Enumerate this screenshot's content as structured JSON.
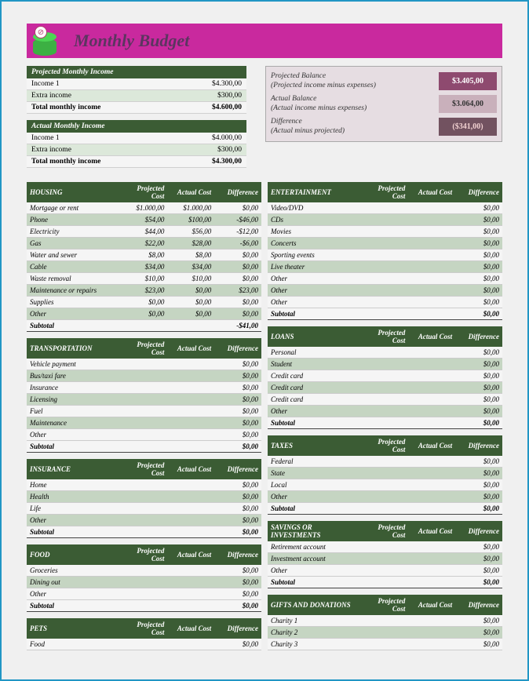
{
  "title": "Monthly Budget",
  "colors": {
    "headerBg": "#c9299e",
    "sectionBg": "#3b5c34",
    "altRow": "#c5d5c2",
    "pageBg": "#f0f0f0",
    "frame": "#2196c4"
  },
  "columnHeaders": {
    "projected": "Projected Cost",
    "actual": "Actual Cost",
    "difference": "Difference"
  },
  "projectedIncome": {
    "header": "Projected Monthly Income",
    "rows": [
      {
        "label": "Income 1",
        "value": "$4.300,00"
      },
      {
        "label": "Extra income",
        "value": "$300,00"
      }
    ],
    "total": {
      "label": "Total monthly income",
      "value": "$4.600,00"
    }
  },
  "actualIncome": {
    "header": "Actual Monthly Income",
    "rows": [
      {
        "label": "Income 1",
        "value": "$4.000,00"
      },
      {
        "label": "Extra income",
        "value": "$300,00"
      }
    ],
    "total": {
      "label": "Total monthly income",
      "value": "$4.300,00"
    }
  },
  "balances": [
    {
      "label": "Projected Balance",
      "sub": "(Projected income minus expenses)",
      "value": "$3.405,00",
      "cls": "bv1"
    },
    {
      "label": "Actual Balance",
      "sub": "(Actual income minus expenses)",
      "value": "$3.064,00",
      "cls": "bv2"
    },
    {
      "label": "Difference",
      "sub": "(Actual minus projected)",
      "value": "($341,00)",
      "cls": "bv3"
    }
  ],
  "leftCategories": [
    {
      "name": "HOUSING",
      "rows": [
        {
          "label": "Mortgage or rent",
          "p": "$1.000,00",
          "a": "$1.000,00",
          "d": "$0,00"
        },
        {
          "label": "Phone",
          "p": "$54,00",
          "a": "$100,00",
          "d": "-$46,00"
        },
        {
          "label": "Electricity",
          "p": "$44,00",
          "a": "$56,00",
          "d": "-$12,00"
        },
        {
          "label": "Gas",
          "p": "$22,00",
          "a": "$28,00",
          "d": "-$6,00"
        },
        {
          "label": "Water and sewer",
          "p": "$8,00",
          "a": "$8,00",
          "d": "$0,00"
        },
        {
          "label": "Cable",
          "p": "$34,00",
          "a": "$34,00",
          "d": "$0,00"
        },
        {
          "label": "Waste removal",
          "p": "$10,00",
          "a": "$10,00",
          "d": "$0,00"
        },
        {
          "label": "Maintenance or repairs",
          "p": "$23,00",
          "a": "$0,00",
          "d": "$23,00"
        },
        {
          "label": "Supplies",
          "p": "$0,00",
          "a": "$0,00",
          "d": "$0,00"
        },
        {
          "label": "Other",
          "p": "$0,00",
          "a": "$0,00",
          "d": "$0,00"
        }
      ],
      "subtotal": {
        "label": "Subtotal",
        "d": "-$41,00"
      }
    },
    {
      "name": "TRANSPORTATION",
      "rows": [
        {
          "label": "Vehicle payment",
          "p": "",
          "a": "",
          "d": "$0,00"
        },
        {
          "label": "Bus/taxi fare",
          "p": "",
          "a": "",
          "d": "$0,00"
        },
        {
          "label": "Insurance",
          "p": "",
          "a": "",
          "d": "$0,00"
        },
        {
          "label": "Licensing",
          "p": "",
          "a": "",
          "d": "$0,00"
        },
        {
          "label": "Fuel",
          "p": "",
          "a": "",
          "d": "$0,00"
        },
        {
          "label": "Maintenance",
          "p": "",
          "a": "",
          "d": "$0,00"
        },
        {
          "label": "Other",
          "p": "",
          "a": "",
          "d": "$0,00"
        }
      ],
      "subtotal": {
        "label": "Subtotal",
        "d": "$0,00"
      }
    },
    {
      "name": "INSURANCE",
      "rows": [
        {
          "label": "Home",
          "p": "",
          "a": "",
          "d": "$0,00"
        },
        {
          "label": "Health",
          "p": "",
          "a": "",
          "d": "$0,00"
        },
        {
          "label": "Life",
          "p": "",
          "a": "",
          "d": "$0,00"
        },
        {
          "label": "Other",
          "p": "",
          "a": "",
          "d": "$0,00"
        }
      ],
      "subtotal": {
        "label": "Subtotal",
        "d": "$0,00"
      }
    },
    {
      "name": "FOOD",
      "rows": [
        {
          "label": "Groceries",
          "p": "",
          "a": "",
          "d": "$0,00"
        },
        {
          "label": "Dining out",
          "p": "",
          "a": "",
          "d": "$0,00"
        },
        {
          "label": "Other",
          "p": "",
          "a": "",
          "d": "$0,00"
        }
      ],
      "subtotal": {
        "label": "Subtotal",
        "d": "$0,00"
      }
    },
    {
      "name": "PETS",
      "rows": [
        {
          "label": "Food",
          "p": "",
          "a": "",
          "d": "$0,00"
        }
      ]
    }
  ],
  "rightCategories": [
    {
      "name": "ENTERTAINMENT",
      "rows": [
        {
          "label": "Video/DVD",
          "p": "",
          "a": "",
          "d": "$0,00"
        },
        {
          "label": "CDs",
          "p": "",
          "a": "",
          "d": "$0,00"
        },
        {
          "label": "Movies",
          "p": "",
          "a": "",
          "d": "$0,00"
        },
        {
          "label": "Concerts",
          "p": "",
          "a": "",
          "d": "$0,00"
        },
        {
          "label": "Sporting events",
          "p": "",
          "a": "",
          "d": "$0,00"
        },
        {
          "label": "Live theater",
          "p": "",
          "a": "",
          "d": "$0,00"
        },
        {
          "label": "Other",
          "p": "",
          "a": "",
          "d": "$0,00"
        },
        {
          "label": "Other",
          "p": "",
          "a": "",
          "d": "$0,00"
        },
        {
          "label": "Other",
          "p": "",
          "a": "",
          "d": "$0,00"
        }
      ],
      "subtotal": {
        "label": "Subtotal",
        "d": "$0,00"
      }
    },
    {
      "name": "LOANS",
      "rows": [
        {
          "label": "Personal",
          "p": "",
          "a": "",
          "d": "$0,00"
        },
        {
          "label": "Student",
          "p": "",
          "a": "",
          "d": "$0,00"
        },
        {
          "label": "Credit card",
          "p": "",
          "a": "",
          "d": "$0,00"
        },
        {
          "label": "Credit card",
          "p": "",
          "a": "",
          "d": "$0,00"
        },
        {
          "label": "Credit card",
          "p": "",
          "a": "",
          "d": "$0,00"
        },
        {
          "label": "Other",
          "p": "",
          "a": "",
          "d": "$0,00"
        }
      ],
      "subtotal": {
        "label": "Subtotal",
        "d": "$0,00"
      }
    },
    {
      "name": "TAXES",
      "rows": [
        {
          "label": "Federal",
          "p": "",
          "a": "",
          "d": "$0,00"
        },
        {
          "label": "State",
          "p": "",
          "a": "",
          "d": "$0,00"
        },
        {
          "label": "Local",
          "p": "",
          "a": "",
          "d": "$0,00"
        },
        {
          "label": "Other",
          "p": "",
          "a": "",
          "d": "$0,00"
        }
      ],
      "subtotal": {
        "label": "Subtotal",
        "d": "$0,00"
      }
    },
    {
      "name": "SAVINGS OR INVESTMENTS",
      "rows": [
        {
          "label": "Retirement account",
          "p": "",
          "a": "",
          "d": "$0,00"
        },
        {
          "label": "Investment account",
          "p": "",
          "a": "",
          "d": "$0,00"
        },
        {
          "label": "Other",
          "p": "",
          "a": "",
          "d": "$0,00"
        }
      ],
      "subtotal": {
        "label": "Subtotal",
        "d": "$0,00"
      }
    },
    {
      "name": "GIFTS AND DONATIONS",
      "rows": [
        {
          "label": "Charity 1",
          "p": "",
          "a": "",
          "d": "$0,00"
        },
        {
          "label": "Charity 2",
          "p": "",
          "a": "",
          "d": "$0,00"
        },
        {
          "label": "Charity 3",
          "p": "",
          "a": "",
          "d": "$0,00"
        }
      ]
    }
  ]
}
